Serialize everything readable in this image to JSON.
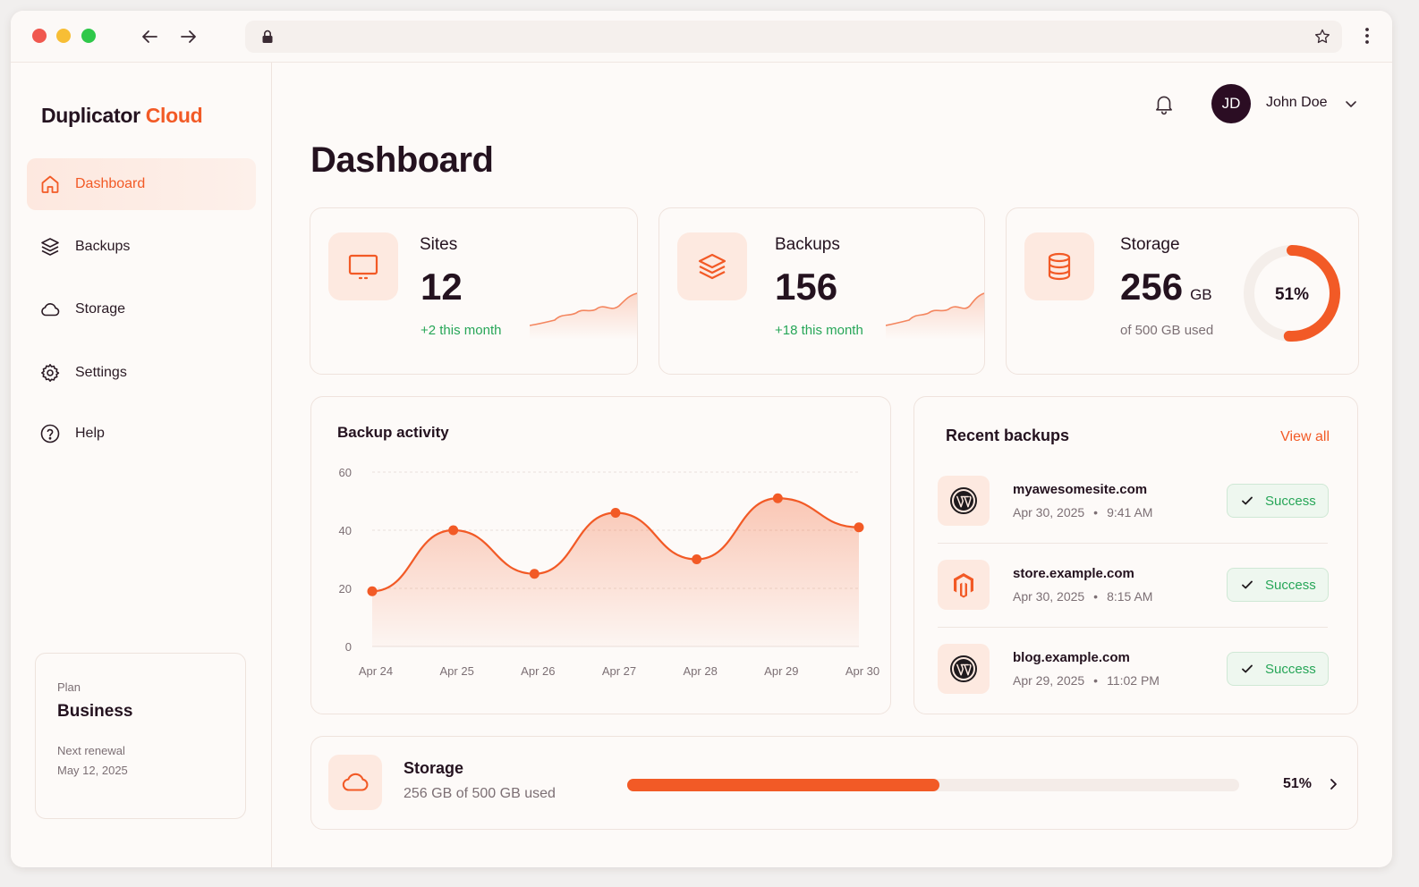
{
  "brand": {
    "name_a": "Duplicator",
    "name_b": "Cloud"
  },
  "colors": {
    "accent": "#f25a26",
    "success": "#27a658",
    "dark": "#24121f"
  },
  "sidebar": {
    "items": [
      {
        "label": "Dashboard",
        "icon": "home-icon",
        "active": true
      },
      {
        "label": "Backups",
        "icon": "layers-icon",
        "active": false
      },
      {
        "label": "Storage",
        "icon": "cloud-icon",
        "active": false
      },
      {
        "label": "Settings",
        "icon": "gear-icon",
        "active": false
      },
      {
        "label": "Help",
        "icon": "help-circle-icon",
        "active": false
      }
    ],
    "plan": {
      "label": "Plan",
      "name": "Business",
      "renewal_label": "Next renewal",
      "renewal_date": "May 12, 2025"
    }
  },
  "header": {
    "user_initials": "JD",
    "user_name": "John Doe"
  },
  "page_title": "Dashboard",
  "stats": {
    "sites": {
      "label": "Sites",
      "value": "12",
      "sub": "+2 this month"
    },
    "backups": {
      "label": "Backups",
      "value": "156",
      "sub": "+18 this month"
    },
    "storage": {
      "label": "Storage",
      "value": "256",
      "unit": "GB",
      "sub": "of 500 GB used",
      "percent_label": "51%",
      "percent": 51
    }
  },
  "activity": {
    "title": "Backup activity"
  },
  "chart_data": {
    "type": "area",
    "title": "Backup activity",
    "categories": [
      "Apr 24",
      "Apr 25",
      "Apr 26",
      "Apr 27",
      "Apr 28",
      "Apr 29",
      "Apr 30"
    ],
    "values": [
      19,
      40,
      25,
      46,
      30,
      51,
      41
    ],
    "yticks": [
      0,
      20,
      40,
      60
    ],
    "ylim": [
      0,
      60
    ],
    "xlabel": "",
    "ylabel": "",
    "grid": true
  },
  "recent": {
    "title": "Recent backups",
    "view_all": "View all",
    "items": [
      {
        "site": "myawesomesite.com",
        "date": "Apr 30, 2025",
        "time": "9:41 AM",
        "status": "Success",
        "icon": "wordpress-icon"
      },
      {
        "site": "store.example.com",
        "date": "Apr 30, 2025",
        "time": "8:15 AM",
        "status": "Success",
        "icon": "magento-icon"
      },
      {
        "site": "blog.example.com",
        "date": "Apr 29, 2025",
        "time": "11:02 PM",
        "status": "Success",
        "icon": "wordpress-icon"
      }
    ]
  },
  "storage_bar": {
    "title": "Storage",
    "sub": "256 GB of 500 GB used",
    "percent_label": "51%",
    "percent": 51
  }
}
